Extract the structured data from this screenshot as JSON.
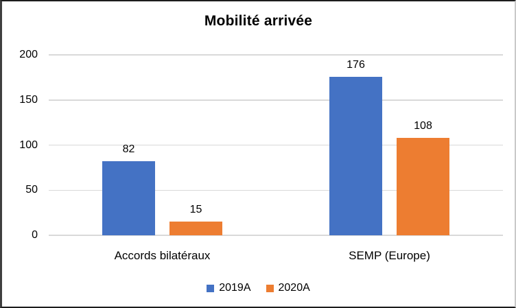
{
  "chart_data": {
    "type": "bar",
    "title": "Mobilité arrivée",
    "categories": [
      "Accords bilatéraux",
      "SEMP (Europe)"
    ],
    "series": [
      {
        "name": "2019A",
        "color": "#4472C4",
        "values": [
          82,
          176
        ]
      },
      {
        "name": "2020A",
        "color": "#ED7D31",
        "values": [
          15,
          108
        ]
      }
    ],
    "xlabel": "",
    "ylabel": "",
    "ylim": [
      0,
      200
    ],
    "yticks": [
      0,
      50,
      100,
      150,
      200
    ],
    "grid": true,
    "gridline_color": "#D9D9D9",
    "text_color": "#000000",
    "data_labels": true,
    "legend_position": "bottom"
  }
}
